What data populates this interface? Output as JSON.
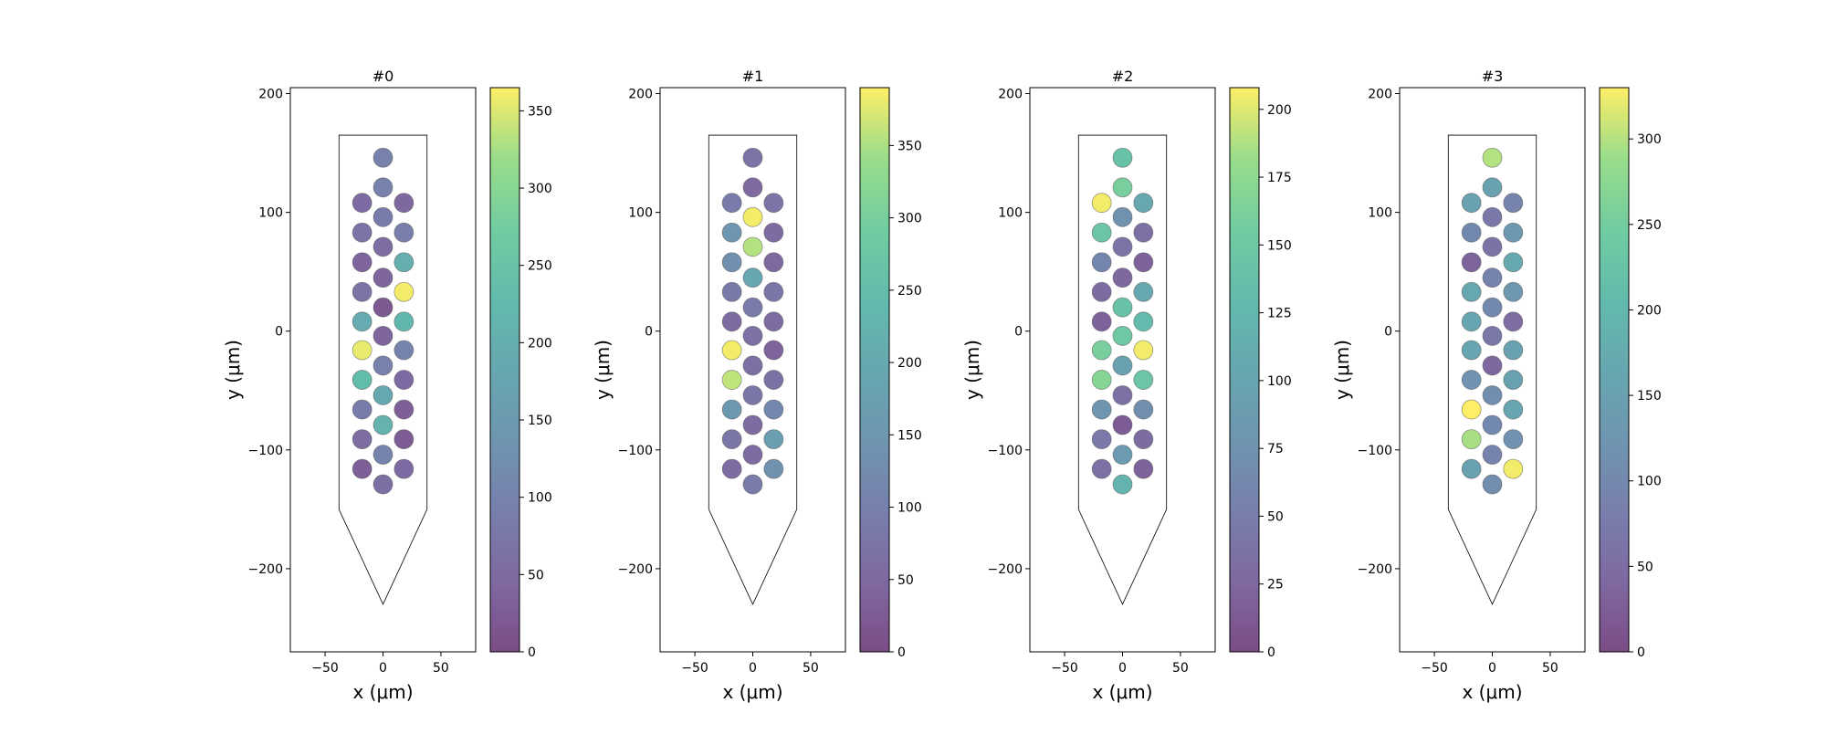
{
  "chart_data": [
    {
      "type": "scatter",
      "title": "#0",
      "xlabel": "x ($\\mu m$)",
      "ylabel": "y ($\\mu m$)",
      "xlabel_display": "x (μm)",
      "ylabel_display": "y (μm)",
      "xlim": [
        -80,
        80
      ],
      "ylim": [
        -270,
        205
      ],
      "xticks": [
        -50,
        0,
        50
      ],
      "yticks": [
        -200,
        -100,
        0,
        100,
        200
      ],
      "colorbar": {
        "min": 0,
        "max": 365,
        "ticks": [
          0,
          50,
          100,
          150,
          200,
          250,
          300,
          350
        ],
        "colormap": "viridis",
        "alpha": 0.7
      },
      "probe_outline": [
        [
          -38,
          165
        ],
        [
          38,
          165
        ],
        [
          38,
          -150
        ],
        [
          0,
          -230
        ],
        [
          -38,
          -150
        ]
      ],
      "points": [
        {
          "x": 0,
          "y": 146,
          "value": 95
        },
        {
          "x": 0,
          "y": 121,
          "value": 92
        },
        {
          "x": -18,
          "y": 108,
          "value": 50
        },
        {
          "x": 18,
          "y": 108,
          "value": 45
        },
        {
          "x": 0,
          "y": 96,
          "value": 85
        },
        {
          "x": -18,
          "y": 83,
          "value": 70
        },
        {
          "x": 18,
          "y": 83,
          "value": 90
        },
        {
          "x": 0,
          "y": 71,
          "value": 55
        },
        {
          "x": -18,
          "y": 58,
          "value": 40
        },
        {
          "x": 18,
          "y": 58,
          "value": 200
        },
        {
          "x": 0,
          "y": 45,
          "value": 40
        },
        {
          "x": -18,
          "y": 33,
          "value": 70
        },
        {
          "x": 18,
          "y": 33,
          "value": 360
        },
        {
          "x": 0,
          "y": 20,
          "value": 20
        },
        {
          "x": -18,
          "y": 8,
          "value": 190
        },
        {
          "x": 18,
          "y": 8,
          "value": 220
        },
        {
          "x": 0,
          "y": -4,
          "value": 40
        },
        {
          "x": -18,
          "y": -16,
          "value": 355
        },
        {
          "x": 18,
          "y": -16,
          "value": 100
        },
        {
          "x": 0,
          "y": -29,
          "value": 95
        },
        {
          "x": -18,
          "y": -41,
          "value": 230
        },
        {
          "x": 18,
          "y": -41,
          "value": 50
        },
        {
          "x": 0,
          "y": -54,
          "value": 180
        },
        {
          "x": -18,
          "y": -66,
          "value": 85
        },
        {
          "x": 18,
          "y": -66,
          "value": 30
        },
        {
          "x": 0,
          "y": -79,
          "value": 210
        },
        {
          "x": -18,
          "y": -91,
          "value": 55
        },
        {
          "x": 18,
          "y": -91,
          "value": 25
        },
        {
          "x": 0,
          "y": -104,
          "value": 100
        },
        {
          "x": -18,
          "y": -116,
          "value": 30
        },
        {
          "x": 18,
          "y": -116,
          "value": 50
        },
        {
          "x": 0,
          "y": -129,
          "value": 60
        }
      ]
    },
    {
      "type": "scatter",
      "title": "#1",
      "xlabel": "x ($\\mu m$)",
      "ylabel": "y ($\\mu m$)",
      "xlabel_display": "x (μm)",
      "ylabel_display": "y (μm)",
      "xlim": [
        -80,
        80
      ],
      "ylim": [
        -270,
        205
      ],
      "xticks": [
        -50,
        0,
        50
      ],
      "yticks": [
        -200,
        -100,
        0,
        100,
        200
      ],
      "colorbar": {
        "min": 0,
        "max": 390,
        "ticks": [
          0,
          50,
          100,
          150,
          200,
          250,
          300,
          350
        ],
        "colormap": "viridis",
        "alpha": 0.7
      },
      "probe_outline": [
        [
          -38,
          165
        ],
        [
          38,
          165
        ],
        [
          38,
          -150
        ],
        [
          0,
          -230
        ],
        [
          -38,
          -150
        ]
      ],
      "points": [
        {
          "x": 0,
          "y": 146,
          "value": 75
        },
        {
          "x": 0,
          "y": 121,
          "value": 50
        },
        {
          "x": -18,
          "y": 108,
          "value": 90
        },
        {
          "x": 18,
          "y": 108,
          "value": 75
        },
        {
          "x": 0,
          "y": 96,
          "value": 385
        },
        {
          "x": -18,
          "y": 83,
          "value": 150
        },
        {
          "x": 18,
          "y": 83,
          "value": 55
        },
        {
          "x": 0,
          "y": 71,
          "value": 355
        },
        {
          "x": -18,
          "y": 58,
          "value": 135
        },
        {
          "x": 18,
          "y": 58,
          "value": 50
        },
        {
          "x": 0,
          "y": 45,
          "value": 195
        },
        {
          "x": -18,
          "y": 33,
          "value": 85
        },
        {
          "x": 18,
          "y": 33,
          "value": 80
        },
        {
          "x": 0,
          "y": 20,
          "value": 90
        },
        {
          "x": -18,
          "y": 8,
          "value": 55
        },
        {
          "x": 18,
          "y": 8,
          "value": 55
        },
        {
          "x": 0,
          "y": -4,
          "value": 65
        },
        {
          "x": -18,
          "y": -16,
          "value": 385
        },
        {
          "x": 18,
          "y": -16,
          "value": 40
        },
        {
          "x": 0,
          "y": -29,
          "value": 60
        },
        {
          "x": -18,
          "y": -41,
          "value": 360
        },
        {
          "x": 18,
          "y": -41,
          "value": 70
        },
        {
          "x": 0,
          "y": -54,
          "value": 80
        },
        {
          "x": -18,
          "y": -66,
          "value": 155
        },
        {
          "x": 18,
          "y": -66,
          "value": 115
        },
        {
          "x": 0,
          "y": -79,
          "value": 55
        },
        {
          "x": -18,
          "y": -91,
          "value": 80
        },
        {
          "x": 18,
          "y": -91,
          "value": 170
        },
        {
          "x": 0,
          "y": -104,
          "value": 55
        },
        {
          "x": -18,
          "y": -116,
          "value": 55
        },
        {
          "x": 18,
          "y": -116,
          "value": 140
        },
        {
          "x": 0,
          "y": -129,
          "value": 90
        }
      ]
    },
    {
      "type": "scatter",
      "title": "#2",
      "xlabel": "x ($\\mu m$)",
      "ylabel": "y ($\\mu m$)",
      "xlabel_display": "x (μm)",
      "ylabel_display": "y (μm)",
      "xlim": [
        -80,
        80
      ],
      "ylim": [
        -270,
        205
      ],
      "xticks": [
        -50,
        0,
        50
      ],
      "yticks": [
        -200,
        -100,
        0,
        100,
        200
      ],
      "colorbar": {
        "min": 0,
        "max": 208,
        "ticks": [
          0,
          25,
          50,
          75,
          100,
          125,
          150,
          175,
          200
        ],
        "colormap": "viridis",
        "alpha": 0.7
      },
      "probe_outline": [
        [
          -38,
          165
        ],
        [
          38,
          165
        ],
        [
          38,
          -150
        ],
        [
          0,
          -230
        ],
        [
          -38,
          -150
        ]
      ],
      "points": [
        {
          "x": 0,
          "y": 146,
          "value": 140
        },
        {
          "x": 0,
          "y": 121,
          "value": 160
        },
        {
          "x": -18,
          "y": 108,
          "value": 205
        },
        {
          "x": 18,
          "y": 108,
          "value": 105
        },
        {
          "x": 0,
          "y": 96,
          "value": 75
        },
        {
          "x": -18,
          "y": 83,
          "value": 145
        },
        {
          "x": 18,
          "y": 83,
          "value": 35
        },
        {
          "x": 0,
          "y": 71,
          "value": 40
        },
        {
          "x": -18,
          "y": 58,
          "value": 60
        },
        {
          "x": 18,
          "y": 58,
          "value": 20
        },
        {
          "x": 0,
          "y": 45,
          "value": 25
        },
        {
          "x": -18,
          "y": 33,
          "value": 30
        },
        {
          "x": 18,
          "y": 33,
          "value": 105
        },
        {
          "x": 0,
          "y": 20,
          "value": 140
        },
        {
          "x": -18,
          "y": 8,
          "value": 20
        },
        {
          "x": 18,
          "y": 8,
          "value": 130
        },
        {
          "x": 0,
          "y": -4,
          "value": 150
        },
        {
          "x": -18,
          "y": -16,
          "value": 160
        },
        {
          "x": 18,
          "y": -16,
          "value": 205
        },
        {
          "x": 0,
          "y": -29,
          "value": 95
        },
        {
          "x": -18,
          "y": -41,
          "value": 170
        },
        {
          "x": 18,
          "y": -41,
          "value": 145
        },
        {
          "x": 0,
          "y": -54,
          "value": 35
        },
        {
          "x": -18,
          "y": -66,
          "value": 80
        },
        {
          "x": 18,
          "y": -66,
          "value": 70
        },
        {
          "x": 0,
          "y": -79,
          "value": 15
        },
        {
          "x": -18,
          "y": -91,
          "value": 45
        },
        {
          "x": 18,
          "y": -91,
          "value": 30
        },
        {
          "x": 0,
          "y": -104,
          "value": 85
        },
        {
          "x": -18,
          "y": -116,
          "value": 35
        },
        {
          "x": 18,
          "y": -116,
          "value": 20
        },
        {
          "x": 0,
          "y": -129,
          "value": 120
        }
      ]
    },
    {
      "type": "scatter",
      "title": "#3",
      "xlabel": "x ($\\mu m$)",
      "ylabel": "y ($\\mu m$)",
      "xlabel_display": "x (μm)",
      "ylabel_display": "y (μm)",
      "xlim": [
        -80,
        80
      ],
      "ylim": [
        -270,
        205
      ],
      "xticks": [
        -50,
        0,
        50
      ],
      "yticks": [
        -200,
        -100,
        0,
        100,
        200
      ],
      "colorbar": {
        "min": 0,
        "max": 330,
        "ticks": [
          0,
          50,
          100,
          150,
          200,
          250,
          300
        ],
        "colormap": "viridis",
        "alpha": 0.7
      },
      "probe_outline": [
        [
          -38,
          165
        ],
        [
          38,
          165
        ],
        [
          38,
          -150
        ],
        [
          0,
          -230
        ],
        [
          -38,
          -150
        ]
      ],
      "points": [
        {
          "x": 0,
          "y": 146,
          "value": 300
        },
        {
          "x": 0,
          "y": 121,
          "value": 150
        },
        {
          "x": -18,
          "y": 108,
          "value": 150
        },
        {
          "x": 18,
          "y": 108,
          "value": 90
        },
        {
          "x": 0,
          "y": 96,
          "value": 70
        },
        {
          "x": -18,
          "y": 83,
          "value": 100
        },
        {
          "x": 18,
          "y": 83,
          "value": 130
        },
        {
          "x": 0,
          "y": 71,
          "value": 60
        },
        {
          "x": -18,
          "y": 58,
          "value": 35
        },
        {
          "x": 18,
          "y": 58,
          "value": 170
        },
        {
          "x": 0,
          "y": 45,
          "value": 90
        },
        {
          "x": -18,
          "y": 33,
          "value": 165
        },
        {
          "x": 18,
          "y": 33,
          "value": 130
        },
        {
          "x": 0,
          "y": 20,
          "value": 100
        },
        {
          "x": -18,
          "y": 8,
          "value": 160
        },
        {
          "x": 18,
          "y": 8,
          "value": 50
        },
        {
          "x": 0,
          "y": -4,
          "value": 70
        },
        {
          "x": -18,
          "y": -16,
          "value": 160
        },
        {
          "x": 18,
          "y": -16,
          "value": 150
        },
        {
          "x": 0,
          "y": -29,
          "value": 40
        },
        {
          "x": -18,
          "y": -41,
          "value": 120
        },
        {
          "x": 18,
          "y": -41,
          "value": 150
        },
        {
          "x": 0,
          "y": -54,
          "value": 110
        },
        {
          "x": -18,
          "y": -66,
          "value": 330
        },
        {
          "x": 18,
          "y": -66,
          "value": 160
        },
        {
          "x": 0,
          "y": -79,
          "value": 100
        },
        {
          "x": -18,
          "y": -91,
          "value": 295
        },
        {
          "x": 18,
          "y": -91,
          "value": 120
        },
        {
          "x": 0,
          "y": -104,
          "value": 90
        },
        {
          "x": -18,
          "y": -116,
          "value": 150
        },
        {
          "x": 18,
          "y": -116,
          "value": 325
        },
        {
          "x": 0,
          "y": -129,
          "value": 110
        }
      ]
    }
  ]
}
